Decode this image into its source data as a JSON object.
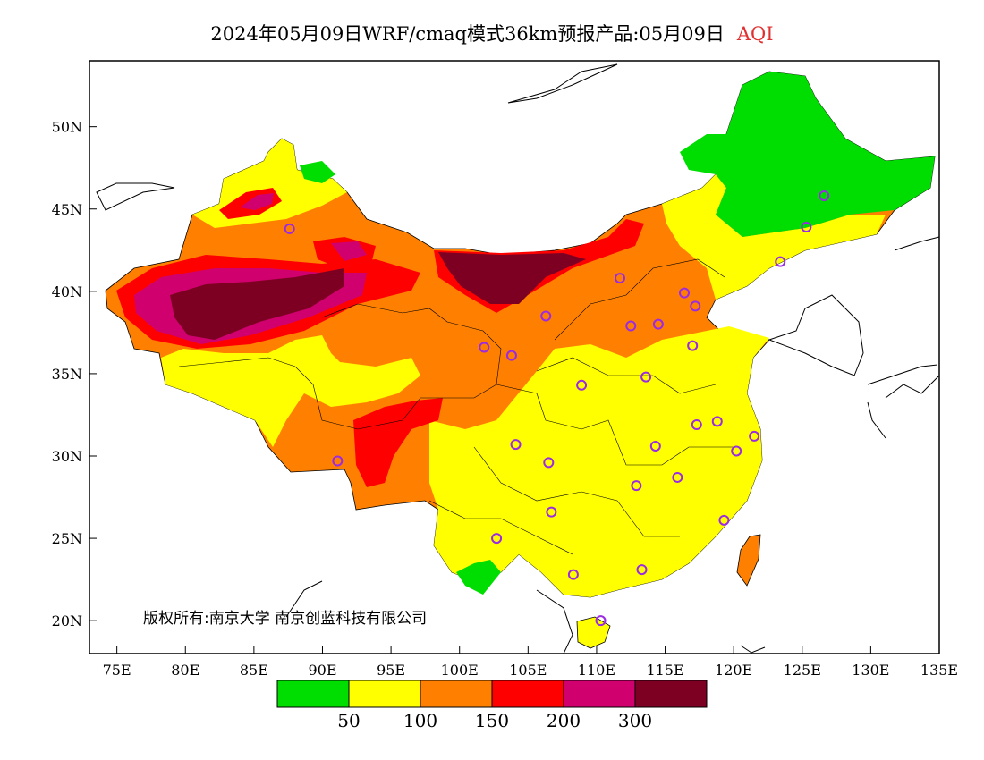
{
  "title": {
    "main": "2024年05月09日WRF/cmaq模式36km预报产品:05月09日",
    "variable": "AQI"
  },
  "axes": {
    "lat_labels": [
      "50N",
      "45N",
      "40N",
      "35N",
      "30N",
      "25N",
      "20N"
    ],
    "lon_labels": [
      "75E",
      "80E",
      "85E",
      "90E",
      "95E",
      "100E",
      "105E",
      "110E",
      "115E",
      "120E",
      "125E",
      "130E",
      "135E"
    ],
    "lon_range": [
      73,
      135
    ],
    "lat_range": [
      18,
      54
    ]
  },
  "copyright": "版权所有:南京大学  南京创蓝科技有限公司",
  "legend": {
    "colors": [
      "#00dd00",
      "#ffff00",
      "#ff8000",
      "#ff0000",
      "#d0006e",
      "#7d0023"
    ],
    "labels": [
      "50",
      "100",
      "150",
      "200",
      "300"
    ]
  },
  "stations": [
    {
      "lon": 87.6,
      "lat": 43.8
    },
    {
      "lon": 91.1,
      "lat": 29.7
    },
    {
      "lon": 101.8,
      "lat": 36.6
    },
    {
      "lon": 103.8,
      "lat": 36.1
    },
    {
      "lon": 106.3,
      "lat": 38.5
    },
    {
      "lon": 111.7,
      "lat": 40.8
    },
    {
      "lon": 116.4,
      "lat": 39.9
    },
    {
      "lon": 117.2,
      "lat": 39.1
    },
    {
      "lon": 114.5,
      "lat": 38.0
    },
    {
      "lon": 112.5,
      "lat": 37.9
    },
    {
      "lon": 117.0,
      "lat": 36.7
    },
    {
      "lon": 113.6,
      "lat": 34.8
    },
    {
      "lon": 108.9,
      "lat": 34.3
    },
    {
      "lon": 117.3,
      "lat": 31.9
    },
    {
      "lon": 118.8,
      "lat": 32.1
    },
    {
      "lon": 121.5,
      "lat": 31.2
    },
    {
      "lon": 120.2,
      "lat": 30.3
    },
    {
      "lon": 114.3,
      "lat": 30.6
    },
    {
      "lon": 106.5,
      "lat": 29.6
    },
    {
      "lon": 104.1,
      "lat": 30.7
    },
    {
      "lon": 106.7,
      "lat": 26.6
    },
    {
      "lon": 102.7,
      "lat": 25.0
    },
    {
      "lon": 108.3,
      "lat": 22.8
    },
    {
      "lon": 113.3,
      "lat": 23.1
    },
    {
      "lon": 112.9,
      "lat": 28.2
    },
    {
      "lon": 115.9,
      "lat": 28.7
    },
    {
      "lon": 119.3,
      "lat": 26.1
    },
    {
      "lon": 110.3,
      "lat": 20.0
    },
    {
      "lon": 123.4,
      "lat": 41.8
    },
    {
      "lon": 125.3,
      "lat": 43.9
    },
    {
      "lon": 126.6,
      "lat": 45.8
    }
  ]
}
